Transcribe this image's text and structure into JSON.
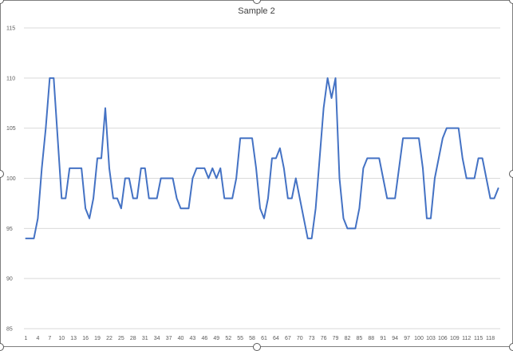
{
  "chart_data": {
    "type": "line",
    "title": "Sample 2",
    "xlabel": "",
    "ylabel": "",
    "ylim": [
      85,
      115
    ],
    "yticks": [
      85,
      90,
      95,
      100,
      105,
      110,
      115
    ],
    "xtick_labels": [
      "1",
      "4",
      "7",
      "10",
      "13",
      "16",
      "19",
      "22",
      "25",
      "28",
      "31",
      "34",
      "37",
      "40",
      "43",
      "46",
      "49",
      "52",
      "55",
      "58",
      "61",
      "64",
      "67",
      "70",
      "73",
      "76",
      "79",
      "82",
      "85",
      "88",
      "91",
      "94",
      "97",
      "100",
      "103",
      "106",
      "109",
      "112",
      "115",
      "118"
    ],
    "grid": true,
    "series": [
      {
        "name": "Sample 2",
        "color": "#4472c4",
        "values": [
          94,
          94,
          94,
          96,
          101,
          105,
          110,
          110,
          104,
          98,
          98,
          101,
          101,
          101,
          101,
          97,
          96,
          98,
          102,
          102,
          107,
          101,
          98,
          98,
          97,
          100,
          100,
          98,
          98,
          101,
          101,
          98,
          98,
          98,
          100,
          100,
          100,
          100,
          98,
          97,
          97,
          97,
          100,
          101,
          101,
          101,
          100,
          101,
          100,
          101,
          98,
          98,
          98,
          100,
          104,
          104,
          104,
          104,
          101,
          97,
          96,
          98,
          102,
          102,
          103,
          101,
          98,
          98,
          100,
          98,
          96,
          94,
          94,
          97,
          102,
          107,
          110,
          108,
          110,
          100,
          96,
          95,
          95,
          95,
          97,
          101,
          102,
          102,
          102,
          102,
          100,
          98,
          98,
          98,
          101,
          104,
          104,
          104,
          104,
          104,
          101,
          96,
          96,
          100,
          102,
          104,
          105,
          105,
          105,
          105,
          102,
          100,
          100,
          100,
          102,
          102,
          100,
          98,
          98,
          99
        ]
      }
    ]
  }
}
